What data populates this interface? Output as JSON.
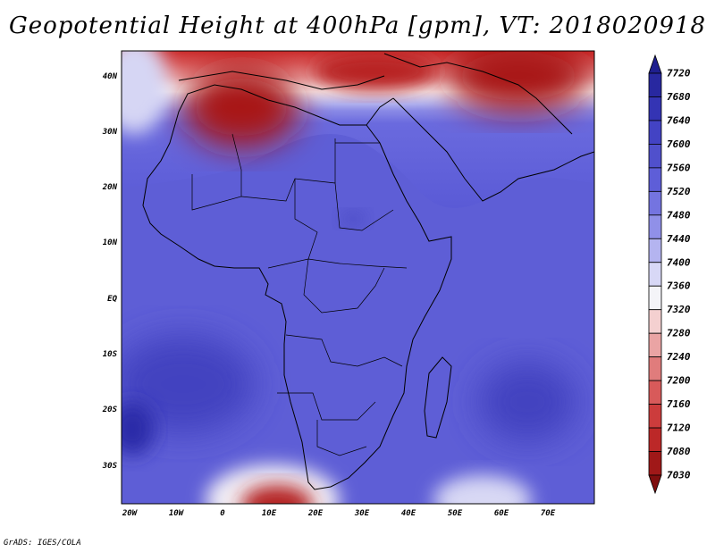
{
  "title": "Geopotential Height at 400hPa [gpm], VT: 2018020918",
  "footer": "GrADS: IGES/COLA",
  "map": {
    "region": "Africa",
    "lon_range": [
      -23,
      80
    ],
    "lat_range": [
      -37,
      45
    ],
    "lon_labels": [
      "20W",
      "10W",
      "0",
      "10E",
      "20E",
      "30E",
      "40E",
      "50E",
      "60E",
      "70E"
    ],
    "lat_labels": [
      "40N",
      "30N",
      "20N",
      "10N",
      "EQ",
      "10S",
      "20S",
      "30S"
    ],
    "features": [
      "coastlines",
      "country-borders",
      "filled-contours"
    ]
  },
  "colorbar": {
    "levels": [
      "7720",
      "7680",
      "7640",
      "7600",
      "7560",
      "7520",
      "7480",
      "7440",
      "7400",
      "7360",
      "7320",
      "7280",
      "7240",
      "7200",
      "7160",
      "7120",
      "7080",
      "7030"
    ],
    "colors": [
      "#1f1f8f",
      "#2828a0",
      "#3434b4",
      "#4343c4",
      "#5050cc",
      "#5e5ed8",
      "#7474e0",
      "#9090e8",
      "#b4b4f0",
      "#d8d8f6",
      "#f4f4f8",
      "#f4d0d0",
      "#eaa4a4",
      "#e07c7c",
      "#d85a5a",
      "#cc3c3c",
      "#bc2828",
      "#a01818",
      "#800e0e"
    ]
  }
}
